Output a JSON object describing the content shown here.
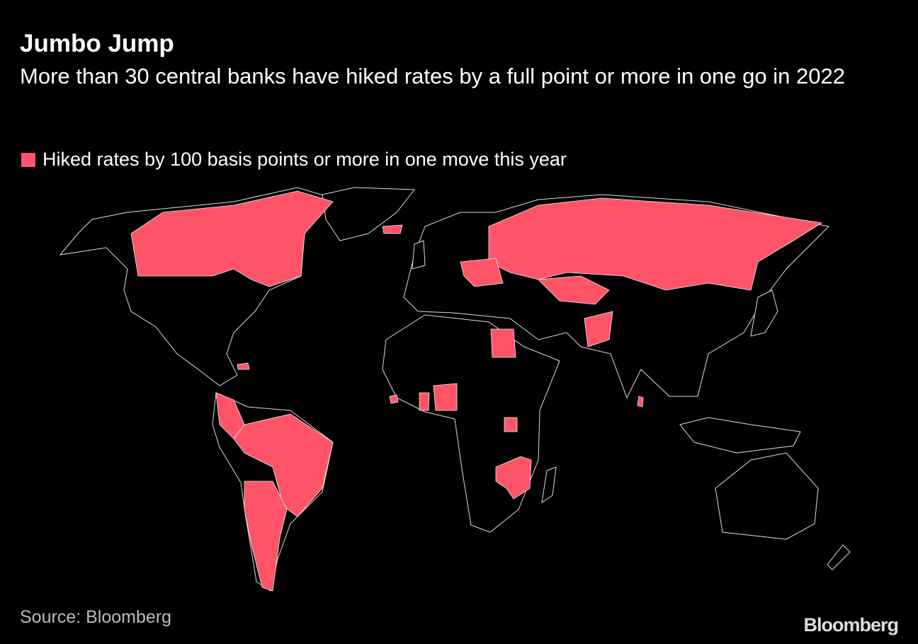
{
  "header": {
    "title": "Jumbo Jump",
    "subtitle": "More than 30 central banks have hiked rates by a full point or more in one go in 2022"
  },
  "legend": {
    "label": "Hiked rates by 100 basis points or more in one move this year",
    "color": "#ff5468"
  },
  "footer": {
    "source": "Source: Bloomberg",
    "brand": "Bloomberg"
  }
}
